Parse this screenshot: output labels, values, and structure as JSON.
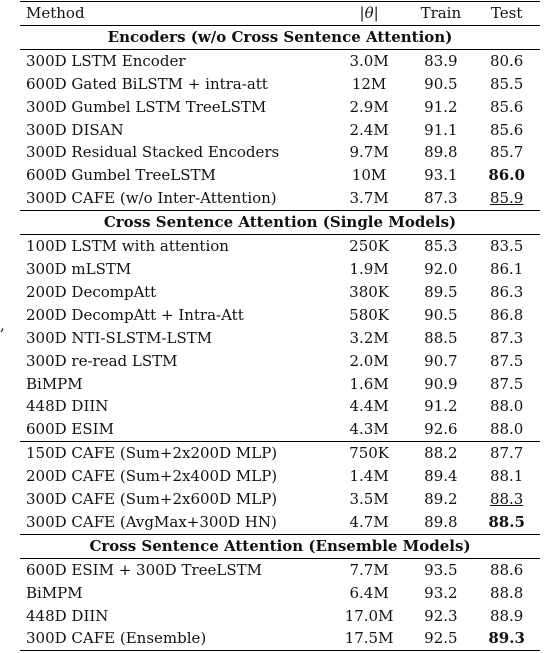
{
  "stray_mark": ",",
  "header": {
    "method": "Method",
    "params_open": "|",
    "params_theta": "θ",
    "params_close": "|",
    "train": "Train",
    "test": "Test"
  },
  "sections": [
    {
      "title": "Encoders (w/o Cross Sentence Attention)",
      "rows": [
        {
          "method": "300D LSTM Encoder",
          "params": "3.0M",
          "train": "83.9",
          "test": "80.6",
          "style": ""
        },
        {
          "method": "600D Gated BiLSTM + intra-att",
          "params": "12M",
          "train": "90.5",
          "test": "85.5",
          "style": ""
        },
        {
          "method": "300D Gumbel LSTM TreeLSTM",
          "params": "2.9M",
          "train": "91.2",
          "test": "85.6",
          "style": ""
        },
        {
          "method": "300D DISAN",
          "params": "2.4M",
          "train": "91.1",
          "test": "85.6",
          "style": ""
        },
        {
          "method": "300D Residual Stacked Encoders",
          "params": "9.7M",
          "train": "89.8",
          "test": "85.7",
          "style": ""
        },
        {
          "method": "600D Gumbel TreeLSTM",
          "params": "10M",
          "train": "93.1",
          "test": "86.0",
          "style": "bold"
        },
        {
          "method": "300D CAFE (w/o Inter-Attention)",
          "params": "3.7M",
          "train": "87.3",
          "test": "85.9",
          "style": "underline"
        }
      ]
    },
    {
      "title": "Cross Sentence Attention (Single Models)",
      "rows": [
        {
          "method": "100D LSTM with attention",
          "params": "250K",
          "train": "85.3",
          "test": "83.5",
          "style": ""
        },
        {
          "method": "300D mLSTM",
          "params": "1.9M",
          "train": "92.0",
          "test": "86.1",
          "style": ""
        },
        {
          "method": "200D DecompAtt",
          "params": "380K",
          "train": "89.5",
          "test": "86.3",
          "style": ""
        },
        {
          "method": "200D DecompAtt + Intra-Att",
          "params": "580K",
          "train": "90.5",
          "test": "86.8",
          "style": ""
        },
        {
          "method": "300D NTI-SLSTM-LSTM",
          "params": "3.2M",
          "train": "88.5",
          "test": "87.3",
          "style": ""
        },
        {
          "method": "300D re-read LSTM",
          "params": "2.0M",
          "train": "90.7",
          "test": "87.5",
          "style": ""
        },
        {
          "method": "BiMPM",
          "params": "1.6M",
          "train": "90.9",
          "test": "87.5",
          "style": ""
        },
        {
          "method": "448D DIIN",
          "params": "4.4M",
          "train": "91.2",
          "test": "88.0",
          "style": ""
        },
        {
          "method": "600D ESIM",
          "params": "4.3M",
          "train": "92.6",
          "test": "88.0",
          "style": ""
        },
        {
          "method": "150D CAFE (Sum+2x200D MLP)",
          "params": "750K",
          "train": "88.2",
          "test": "87.7",
          "style": "",
          "separator": true
        },
        {
          "method": "200D CAFE (Sum+2x400D MLP)",
          "params": "1.4M",
          "train": "89.4",
          "test": "88.1",
          "style": ""
        },
        {
          "method": "300D CAFE (Sum+2x600D MLP)",
          "params": "3.5M",
          "train": "89.2",
          "test": "88.3",
          "style": "underline"
        },
        {
          "method": "300D CAFE (AvgMax+300D HN)",
          "params": "4.7M",
          "train": "89.8",
          "test": "88.5",
          "style": "bold"
        }
      ]
    },
    {
      "title": "Cross Sentence Attention (Ensemble Models)",
      "rows": [
        {
          "method": "600D ESIM + 300D TreeLSTM",
          "params": "7.7M",
          "train": "93.5",
          "test": "88.6",
          "style": ""
        },
        {
          "method": "BiMPM",
          "params": "6.4M",
          "train": "93.2",
          "test": "88.8",
          "style": ""
        },
        {
          "method": "448D DIIN",
          "params": "17.0M",
          "train": "92.3",
          "test": "88.9",
          "style": ""
        },
        {
          "method": "300D CAFE (Ensemble)",
          "params": "17.5M",
          "train": "92.5",
          "test": "89.3",
          "style": "bold"
        }
      ]
    }
  ]
}
